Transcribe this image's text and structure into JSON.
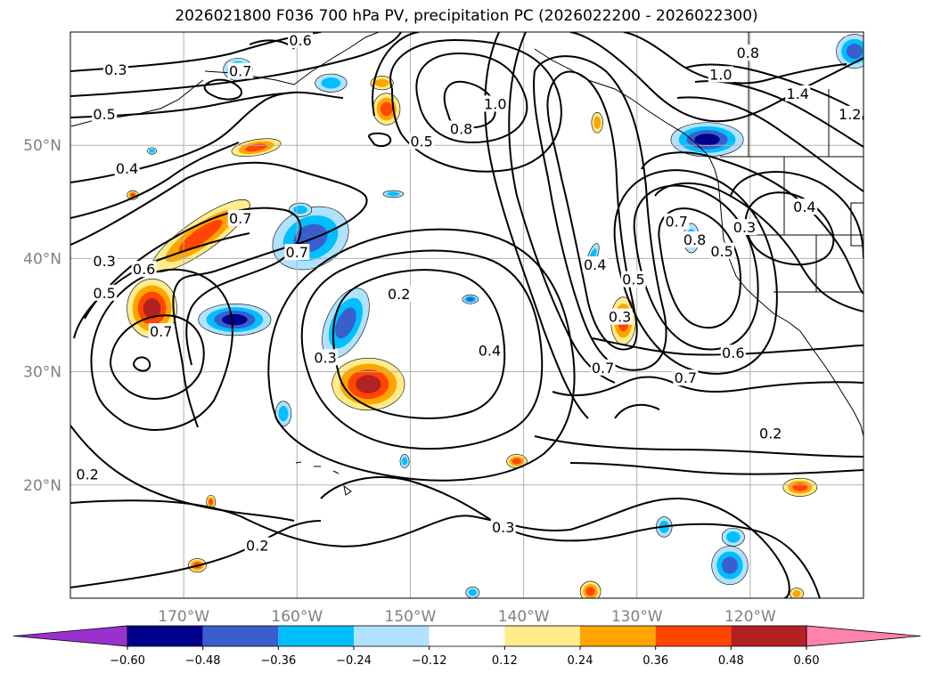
{
  "chart_data": {
    "type": "contour-map",
    "title": "2026021800 F036 700 hPa PV, precipitation PC (2026022200 - 2026022300)",
    "variable_contours": "700 hPa PV",
    "variable_fill": "precipitation PC",
    "lon_range": [
      -180,
      -110
    ],
    "lat_range": [
      10,
      60
    ],
    "lat_ticks": [
      {
        "value": 50,
        "label": "50°N"
      },
      {
        "value": 40,
        "label": "40°N"
      },
      {
        "value": 30,
        "label": "30°N"
      },
      {
        "value": 20,
        "label": "20°N"
      }
    ],
    "lon_ticks": [
      {
        "value": -170,
        "label": "170°W"
      },
      {
        "value": -160,
        "label": "160°W"
      },
      {
        "value": -150,
        "label": "150°W"
      },
      {
        "value": -140,
        "label": "140°W"
      },
      {
        "value": -130,
        "label": "130°W"
      },
      {
        "value": -120,
        "label": "120°W"
      }
    ],
    "grid": true,
    "colorbar": {
      "orientation": "horizontal",
      "extend": "both",
      "levels": [
        -0.6,
        -0.48,
        -0.36,
        -0.24,
        -0.12,
        0.12,
        0.24,
        0.36,
        0.48,
        0.6
      ],
      "tick_labels": [
        "−0.60",
        "−0.48",
        "−0.36",
        "−0.24",
        "−0.12",
        "0.12",
        "0.24",
        "0.36",
        "0.48",
        "0.60"
      ],
      "colors": [
        "#9932cc",
        "#00008b",
        "#3a5fcd",
        "#00bfff",
        "#b0e2ff",
        "#ffffff",
        "#ffec8b",
        "#ffa500",
        "#ff4500",
        "#b22222",
        "#ff82ab"
      ]
    },
    "contour_labels": [
      {
        "text": "0.3",
        "lon": -176,
        "lat": 56.6
      },
      {
        "text": "0.5",
        "lon": -177,
        "lat": 52.7
      },
      {
        "text": "0.4",
        "lon": -175,
        "lat": 47.9
      },
      {
        "text": "0.3",
        "lon": -177,
        "lat": 39.7
      },
      {
        "text": "0.6",
        "lon": -173.5,
        "lat": 39
      },
      {
        "text": "0.5",
        "lon": -177,
        "lat": 36.9
      },
      {
        "text": "0.7",
        "lon": -172,
        "lat": 33.5
      },
      {
        "text": "0.7",
        "lon": -165,
        "lat": 43.5
      },
      {
        "text": "0.7",
        "lon": -160,
        "lat": 40.5
      },
      {
        "text": "0.2",
        "lon": -151,
        "lat": 36.8
      },
      {
        "text": "0.3",
        "lon": -157.5,
        "lat": 31.2
      },
      {
        "text": "0.5",
        "lon": -149,
        "lat": 50.3
      },
      {
        "text": "0.8",
        "lon": -145.5,
        "lat": 51.4
      },
      {
        "text": "1.0",
        "lon": -142.5,
        "lat": 53.6
      },
      {
        "text": "0.4",
        "lon": -143,
        "lat": 31.8
      },
      {
        "text": "0.4",
        "lon": -133.7,
        "lat": 39.4
      },
      {
        "text": "0.5",
        "lon": -130.3,
        "lat": 38.1
      },
      {
        "text": "0.3",
        "lon": -131.5,
        "lat": 34.8
      },
      {
        "text": "0.7",
        "lon": -133,
        "lat": 30.3
      },
      {
        "text": "0.7",
        "lon": -126.5,
        "lat": 43.2
      },
      {
        "text": "0.8",
        "lon": -124.9,
        "lat": 41.6
      },
      {
        "text": "0.5",
        "lon": -122.5,
        "lat": 40.6
      },
      {
        "text": "0.3",
        "lon": -120.5,
        "lat": 42.7
      },
      {
        "text": "0.4",
        "lon": -115.2,
        "lat": 44.5
      },
      {
        "text": "0.6",
        "lon": -121.5,
        "lat": 31.6
      },
      {
        "text": "0.7",
        "lon": -125.7,
        "lat": 29.4
      },
      {
        "text": "0.2",
        "lon": -118.2,
        "lat": 24.5
      },
      {
        "text": "0.2",
        "lon": -178.5,
        "lat": 20.9
      },
      {
        "text": "0.2",
        "lon": -163.5,
        "lat": 14.6
      },
      {
        "text": "0.3",
        "lon": -141.8,
        "lat": 16.2
      },
      {
        "text": "0.8",
        "lon": -120.2,
        "lat": 58.1
      },
      {
        "text": "1.0",
        "lon": -122.6,
        "lat": 56.2
      },
      {
        "text": "1.4",
        "lon": -115.8,
        "lat": 54.5
      },
      {
        "text": "1.2",
        "lon": -111.2,
        "lat": 52.7
      },
      {
        "text": "0.6",
        "lon": -159.7,
        "lat": 59.2
      },
      {
        "text": "0.7",
        "lon": -165,
        "lat": 56.5
      }
    ],
    "precip_blobs": [
      {
        "lon": -168.5,
        "lat": 42,
        "rx": 5.2,
        "ry": 1.4,
        "rot": -35,
        "value": 0.45
      },
      {
        "lon": -172.8,
        "lat": 35.6,
        "rx": 2.2,
        "ry": 2.6,
        "rot": 0,
        "value": 0.5
      },
      {
        "lon": -153.7,
        "lat": 28.9,
        "rx": 3.2,
        "ry": 2.3,
        "rot": 0,
        "value": 0.55
      },
      {
        "lon": -158.8,
        "lat": 41.8,
        "rx": 3.5,
        "ry": 2.6,
        "rot": -25,
        "value": -0.45
      },
      {
        "lon": -165.5,
        "lat": 34.6,
        "rx": 3.2,
        "ry": 1.4,
        "rot": 0,
        "value": -0.5
      },
      {
        "lon": -155.7,
        "lat": 34.3,
        "rx": 1.7,
        "ry": 3.3,
        "rot": 25,
        "value": -0.45
      },
      {
        "lon": -123.8,
        "lat": 50.5,
        "rx": 3.2,
        "ry": 1.5,
        "rot": 0,
        "value": -0.55
      },
      {
        "lon": -131.2,
        "lat": 34.5,
        "rx": 1.1,
        "ry": 2.1,
        "rot": 0,
        "value": 0.4
      },
      {
        "lon": -133.9,
        "lat": 40.2,
        "rx": 0.4,
        "ry": 1.2,
        "rot": 20,
        "value": -0.3
      },
      {
        "lon": -152.1,
        "lat": 53.2,
        "rx": 1.2,
        "ry": 1.4,
        "rot": 0,
        "value": 0.4
      },
      {
        "lon": -152.5,
        "lat": 55.5,
        "rx": 1.0,
        "ry": 0.6,
        "rot": 0,
        "value": 0.35
      },
      {
        "lon": -163.6,
        "lat": 49.8,
        "rx": 2.2,
        "ry": 0.7,
        "rot": -10,
        "value": 0.4
      },
      {
        "lon": -165.2,
        "lat": 56.7,
        "rx": 1.3,
        "ry": 1.0,
        "rot": 0,
        "value": -0.4
      },
      {
        "lon": -157,
        "lat": 55.5,
        "rx": 1.4,
        "ry": 0.8,
        "rot": 0,
        "value": -0.3
      },
      {
        "lon": -110.8,
        "lat": 58.3,
        "rx": 1.6,
        "ry": 1.5,
        "rot": 0,
        "value": -0.4
      },
      {
        "lon": -125.2,
        "lat": 41.8,
        "rx": 0.7,
        "ry": 1.3,
        "rot": 0,
        "value": -0.35
      },
      {
        "lon": -121.8,
        "lat": 12.9,
        "rx": 1.6,
        "ry": 1.7,
        "rot": 0,
        "value": -0.45
      },
      {
        "lon": -115.6,
        "lat": 19.8,
        "rx": 1.5,
        "ry": 0.8,
        "rot": 0,
        "value": 0.45
      },
      {
        "lon": -161.2,
        "lat": 26.3,
        "rx": 0.7,
        "ry": 1.1,
        "rot": 0,
        "value": -0.35
      },
      {
        "lon": -144.7,
        "lat": 36.4,
        "rx": 0.7,
        "ry": 0.4,
        "rot": 0,
        "value": -0.4
      },
      {
        "lon": -140.6,
        "lat": 22.1,
        "rx": 0.9,
        "ry": 0.6,
        "rot": 0,
        "value": 0.4
      },
      {
        "lon": -168.8,
        "lat": 12.9,
        "rx": 0.8,
        "ry": 0.6,
        "rot": 0,
        "value": 0.4
      },
      {
        "lon": -134.1,
        "lat": 10.6,
        "rx": 0.9,
        "ry": 0.9,
        "rot": 0,
        "value": 0.4
      },
      {
        "lon": -127.6,
        "lat": 16.3,
        "rx": 0.7,
        "ry": 0.9,
        "rot": 0,
        "value": -0.35
      },
      {
        "lon": -121.5,
        "lat": 15.4,
        "rx": 1.0,
        "ry": 0.8,
        "rot": 0,
        "value": -0.35
      },
      {
        "lon": -150.5,
        "lat": 22.1,
        "rx": 0.4,
        "ry": 0.6,
        "rot": 0,
        "value": -0.3
      },
      {
        "lon": -159.7,
        "lat": 44.3,
        "rx": 1.0,
        "ry": 0.6,
        "rot": 0,
        "value": -0.3
      },
      {
        "lon": -133.5,
        "lat": 52,
        "rx": 0.5,
        "ry": 0.9,
        "rot": 0,
        "value": 0.35
      },
      {
        "lon": -174.5,
        "lat": 45.6,
        "rx": 0.5,
        "ry": 0.4,
        "rot": 0,
        "value": 0.4
      },
      {
        "lon": -167.6,
        "lat": 18.5,
        "rx": 0.4,
        "ry": 0.6,
        "rot": 0,
        "value": 0.4
      },
      {
        "lon": -172.8,
        "lat": 49.5,
        "rx": 0.4,
        "ry": 0.3,
        "rot": 0,
        "value": -0.3
      },
      {
        "lon": -151.5,
        "lat": 45.7,
        "rx": 0.9,
        "ry": 0.3,
        "rot": 0,
        "value": -0.25
      },
      {
        "lon": -115.9,
        "lat": 10.4,
        "rx": 0.6,
        "ry": 0.5,
        "rot": 0,
        "value": 0.35
      },
      {
        "lon": -144.5,
        "lat": 10.5,
        "rx": 0.6,
        "ry": 0.5,
        "rot": 0,
        "value": -0.35
      }
    ]
  }
}
